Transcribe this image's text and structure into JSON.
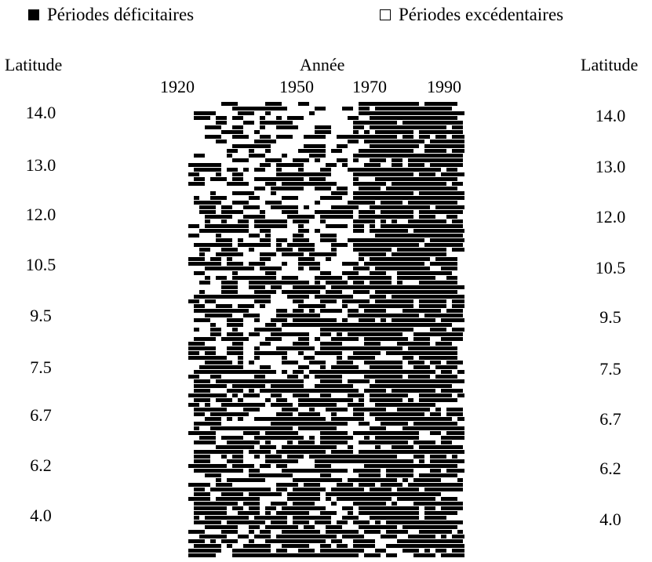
{
  "legend": {
    "deficit_label": "Périodes déficitaires",
    "surplus_label": "Périodes excédentaires"
  },
  "axes": {
    "left_title": "Latitude",
    "right_title": "Latitude",
    "top_title": "Année"
  },
  "chart_data": {
    "type": "heatmap",
    "title": "",
    "xlabel": "Année",
    "ylabel": "Latitude",
    "x_ticks": [
      "1920",
      "1950",
      "1970",
      "1990"
    ],
    "y_ticks": [
      "14.0",
      "13.0",
      "12.0",
      "10.5",
      "9.5",
      "7.5",
      "6.7",
      "6.2",
      "4.0"
    ],
    "series": [
      {
        "name": "Périodes déficitaires",
        "color": "#000000"
      },
      {
        "name": "Périodes excédentaires",
        "color": "#ffffff"
      }
    ]
  }
}
